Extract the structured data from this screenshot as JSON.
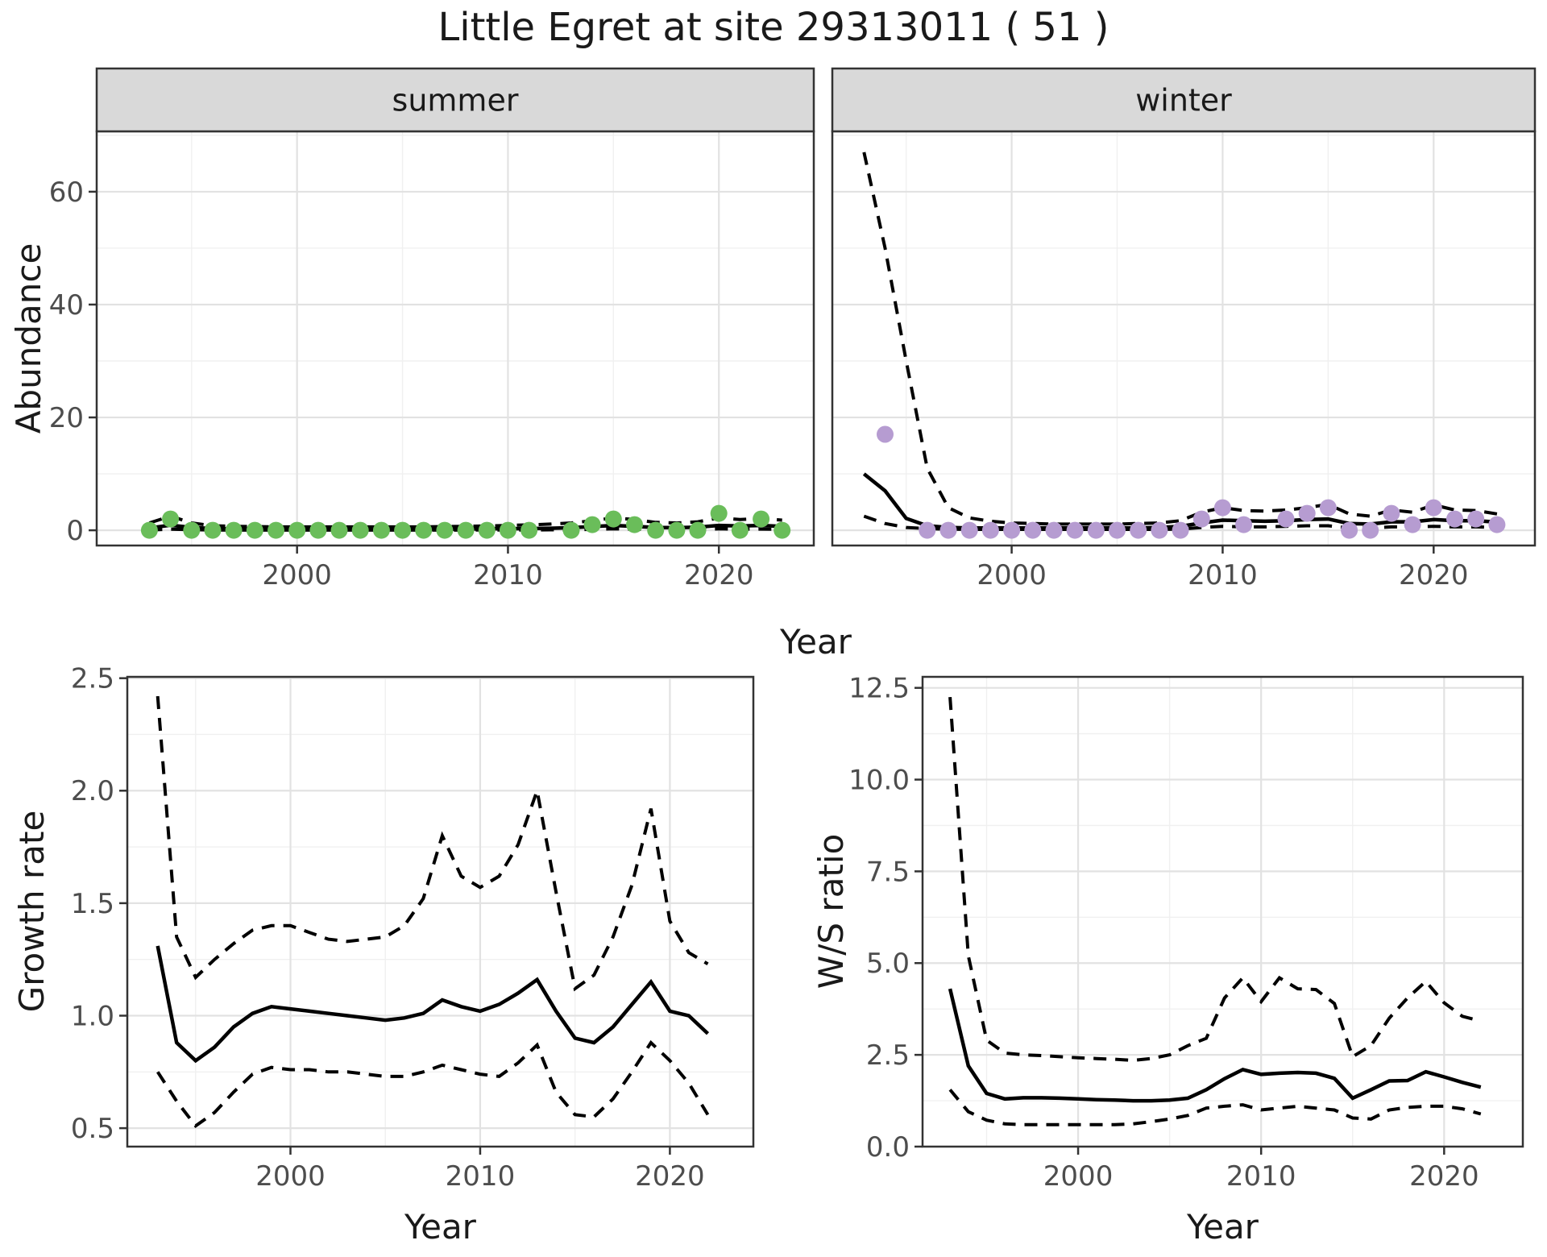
{
  "title": "Little Egret at site 29313011 ( 51 )",
  "axis_titles": {
    "year_top": "Year",
    "year_growth": "Year",
    "year_ws": "Year",
    "abundance": "Abundance",
    "growth_rate": "Growth rate",
    "ws_ratio": "W/S ratio"
  },
  "colors": {
    "summer_point": "#6abd5a",
    "winter_point": "#b69cd1",
    "line": "#000000",
    "grid_major": "#e2e2e2",
    "grid_minor": "#f0f0f0",
    "panel_border": "#333333",
    "strip_fill": "#d9d9d9",
    "strip_text": "#1a1a1a",
    "tick_label": "#4d4d4d",
    "panel_bg": "#ffffff"
  },
  "chart_data": [
    {
      "type": "line",
      "id": "abundance_summer",
      "facet_label": "summer",
      "ylabel": "Abundance",
      "xlabel": "Year",
      "xlim": [
        1990.5,
        2024.5
      ],
      "ylim": [
        -2.7,
        70.7
      ],
      "x_ticks": [
        2000,
        2010,
        2020
      ],
      "x_tick_labels": [
        "2000",
        "2010",
        "2020"
      ],
      "x_minor": [
        1995,
        2005,
        2015
      ],
      "y_ticks": [
        0,
        20,
        40,
        60
      ],
      "y_tick_labels": [
        "0",
        "20",
        "40",
        "60"
      ],
      "y_minor": [
        10,
        30,
        50,
        70
      ],
      "point_color": "#6abd5a",
      "years": [
        1993,
        1994,
        1995,
        1996,
        1997,
        1998,
        1999,
        2000,
        2001,
        2002,
        2003,
        2004,
        2005,
        2006,
        2007,
        2008,
        2009,
        2010,
        2011,
        2012,
        2013,
        2014,
        2015,
        2016,
        2017,
        2018,
        2019,
        2020,
        2021,
        2022,
        2023
      ],
      "points": [
        0,
        2,
        0,
        0,
        0,
        0,
        0,
        0,
        0,
        0,
        0,
        0,
        0,
        0,
        0,
        0,
        0,
        0,
        0,
        null,
        0,
        1,
        2,
        1,
        0,
        0,
        0,
        3,
        0,
        2,
        0
      ],
      "fit": [
        0.4,
        0.9,
        0.5,
        0.3,
        0.25,
        0.22,
        0.2,
        0.2,
        0.2,
        0.2,
        0.2,
        0.2,
        0.2,
        0.2,
        0.2,
        0.22,
        0.25,
        0.28,
        0.3,
        0.35,
        0.45,
        0.65,
        0.85,
        0.7,
        0.5,
        0.45,
        0.55,
        0.85,
        0.75,
        0.85,
        0.7
      ],
      "upper_ci": [
        1.3,
        2.5,
        1.3,
        0.8,
        0.7,
        0.65,
        0.6,
        0.6,
        0.6,
        0.6,
        0.6,
        0.6,
        0.6,
        0.6,
        0.65,
        0.7,
        0.75,
        0.85,
        0.95,
        1.1,
        1.3,
        1.7,
        2.2,
        1.9,
        1.4,
        1.3,
        1.5,
        2.2,
        1.9,
        2.1,
        1.8
      ],
      "lower_ci": [
        0.05,
        0.2,
        0.1,
        0.05,
        0.03,
        0.03,
        0.03,
        0.03,
        0.03,
        0.03,
        0.03,
        0.03,
        0.03,
        0.03,
        0.03,
        0.03,
        0.05,
        0.05,
        0.06,
        0.08,
        0.1,
        0.15,
        0.25,
        0.18,
        0.12,
        0.1,
        0.12,
        0.25,
        0.2,
        0.22,
        0.18
      ]
    },
    {
      "type": "line",
      "id": "abundance_winter",
      "facet_label": "winter",
      "ylabel": "Abundance",
      "xlabel": "Year",
      "xlim": [
        1991.5,
        2024.8
      ],
      "ylim": [
        -2.7,
        70.7
      ],
      "x_ticks": [
        2000,
        2010,
        2020
      ],
      "x_tick_labels": [
        "2000",
        "2010",
        "2020"
      ],
      "x_minor": [
        1995,
        2005,
        2015
      ],
      "y_ticks": [
        0,
        20,
        40,
        60
      ],
      "y_tick_labels": [
        "0",
        "20",
        "40",
        "60"
      ],
      "y_minor": [
        10,
        30,
        50,
        70
      ],
      "point_color": "#b69cd1",
      "years": [
        1993,
        1994,
        1995,
        1996,
        1997,
        1998,
        1999,
        2000,
        2001,
        2002,
        2003,
        2004,
        2005,
        2006,
        2007,
        2008,
        2009,
        2010,
        2011,
        2012,
        2013,
        2014,
        2015,
        2016,
        2017,
        2018,
        2019,
        2020,
        2021,
        2022,
        2023
      ],
      "points": [
        null,
        17,
        null,
        0,
        0,
        0,
        0,
        0,
        0,
        0,
        0,
        0,
        0,
        0,
        0,
        0,
        2,
        4,
        1,
        null,
        2,
        3,
        4,
        0,
        0,
        3,
        1,
        4,
        2,
        2,
        1
      ],
      "fit": [
        10,
        7,
        2.1,
        0.8,
        0.5,
        0.4,
        0.4,
        0.4,
        0.4,
        0.4,
        0.4,
        0.4,
        0.4,
        0.4,
        0.5,
        0.7,
        1.3,
        1.8,
        1.7,
        1.6,
        1.7,
        1.9,
        2.0,
        1.2,
        1.1,
        1.5,
        1.5,
        1.9,
        1.7,
        1.7,
        1.45
      ],
      "upper_ci": [
        67,
        50,
        30,
        11,
        4,
        2.2,
        1.6,
        1.3,
        1.2,
        1.1,
        1.1,
        1.1,
        1.1,
        1.2,
        1.3,
        1.7,
        3.2,
        4.0,
        3.5,
        3.4,
        3.6,
        4.0,
        4.6,
        2.9,
        2.5,
        3.6,
        3.2,
        4.5,
        3.6,
        3.5,
        2.9
      ],
      "lower_ci": [
        2.5,
        1.2,
        0.5,
        0.3,
        0.2,
        0.15,
        0.15,
        0.15,
        0.15,
        0.15,
        0.15,
        0.15,
        0.15,
        0.15,
        0.15,
        0.2,
        0.5,
        0.7,
        0.6,
        0.6,
        0.7,
        0.8,
        0.8,
        0.4,
        0.4,
        0.6,
        0.6,
        0.7,
        0.6,
        0.6,
        0.5
      ]
    },
    {
      "type": "line",
      "id": "growth_rate",
      "facet_label": null,
      "ylabel": "Growth rate",
      "xlabel": "Year",
      "xlim": [
        1991.4,
        2024.4
      ],
      "ylim": [
        0.418,
        2.506
      ],
      "x_ticks": [
        2000,
        2010,
        2020
      ],
      "x_tick_labels": [
        "2000",
        "2010",
        "2020"
      ],
      "x_minor": [
        1995,
        2005,
        2015
      ],
      "y_ticks": [
        0.5,
        1.0,
        1.5,
        2.0,
        2.5
      ],
      "y_tick_labels": [
        "0.5",
        "1.0",
        "1.5",
        "2.0",
        "2.5"
      ],
      "y_minor": [
        0.75,
        1.25,
        1.75,
        2.25
      ],
      "point_color": null,
      "years": [
        1993,
        1994,
        1995,
        1996,
        1997,
        1998,
        1999,
        2000,
        2001,
        2002,
        2003,
        2004,
        2005,
        2006,
        2007,
        2008,
        2009,
        2010,
        2011,
        2012,
        2013,
        2014,
        2015,
        2016,
        2017,
        2018,
        2019,
        2020,
        2021,
        2022
      ],
      "points": [],
      "fit": [
        1.31,
        0.88,
        0.8,
        0.86,
        0.95,
        1.01,
        1.04,
        1.03,
        1.02,
        1.01,
        1.0,
        0.99,
        0.98,
        0.99,
        1.01,
        1.07,
        1.04,
        1.02,
        1.05,
        1.1,
        1.16,
        1.02,
        0.9,
        0.88,
        0.95,
        1.05,
        1.15,
        1.02,
        1.0,
        0.92
      ],
      "upper_ci": [
        2.42,
        1.35,
        1.17,
        1.25,
        1.32,
        1.38,
        1.4,
        1.4,
        1.37,
        1.34,
        1.33,
        1.34,
        1.35,
        1.4,
        1.52,
        1.8,
        1.62,
        1.57,
        1.62,
        1.76,
        2.0,
        1.55,
        1.12,
        1.18,
        1.35,
        1.58,
        1.92,
        1.42,
        1.28,
        1.23
      ],
      "lower_ci": [
        0.75,
        0.62,
        0.51,
        0.57,
        0.66,
        0.74,
        0.77,
        0.76,
        0.76,
        0.75,
        0.75,
        0.74,
        0.73,
        0.73,
        0.75,
        0.78,
        0.76,
        0.74,
        0.73,
        0.79,
        0.87,
        0.66,
        0.56,
        0.55,
        0.63,
        0.75,
        0.88,
        0.8,
        0.7,
        0.56
      ]
    },
    {
      "type": "line",
      "id": "ws_ratio",
      "facet_label": null,
      "ylabel": "W/S ratio",
      "xlabel": "Year",
      "xlim": [
        1991.5,
        2024.3
      ],
      "ylim": [
        0,
        12.8
      ],
      "x_ticks": [
        2000,
        2010,
        2020
      ],
      "x_tick_labels": [
        "2000",
        "2010",
        "2020"
      ],
      "x_minor": [
        1995,
        2005,
        2015
      ],
      "y_ticks": [
        0,
        2.5,
        5.0,
        7.5,
        10.0,
        12.5
      ],
      "y_tick_labels": [
        "0.0",
        "2.5",
        "5.0",
        "7.5",
        "10.0",
        "12.5"
      ],
      "y_minor": [
        1.25,
        3.75,
        6.25,
        8.75,
        11.25
      ],
      "point_color": null,
      "years": [
        1993,
        1994,
        1995,
        1996,
        1997,
        1998,
        1999,
        2000,
        2001,
        2002,
        2003,
        2004,
        2005,
        2006,
        2007,
        2008,
        2009,
        2010,
        2011,
        2012,
        2013,
        2014,
        2015,
        2016,
        2017,
        2018,
        2019,
        2020,
        2021,
        2022
      ],
      "points": [],
      "fit": [
        4.3,
        2.2,
        1.45,
        1.3,
        1.33,
        1.33,
        1.32,
        1.3,
        1.28,
        1.27,
        1.25,
        1.25,
        1.27,
        1.32,
        1.55,
        1.85,
        2.1,
        1.97,
        2.0,
        2.02,
        2.0,
        1.86,
        1.32,
        1.55,
        1.79,
        1.8,
        2.04,
        1.9,
        1.75,
        1.62
      ],
      "upper_ci": [
        12.25,
        5.2,
        2.9,
        2.55,
        2.5,
        2.48,
        2.45,
        2.42,
        2.4,
        2.38,
        2.35,
        2.4,
        2.5,
        2.75,
        2.95,
        4.05,
        4.6,
        3.95,
        4.6,
        4.3,
        4.28,
        3.9,
        2.45,
        2.75,
        3.5,
        4.05,
        4.5,
        3.92,
        3.55,
        3.42
      ],
      "lower_ci": [
        1.55,
        0.95,
        0.72,
        0.62,
        0.6,
        0.6,
        0.6,
        0.6,
        0.6,
        0.6,
        0.62,
        0.68,
        0.75,
        0.85,
        1.05,
        1.1,
        1.14,
        1.0,
        1.05,
        1.1,
        1.05,
        1.0,
        0.78,
        0.75,
        1.0,
        1.07,
        1.1,
        1.1,
        1.03,
        0.89
      ]
    }
  ]
}
